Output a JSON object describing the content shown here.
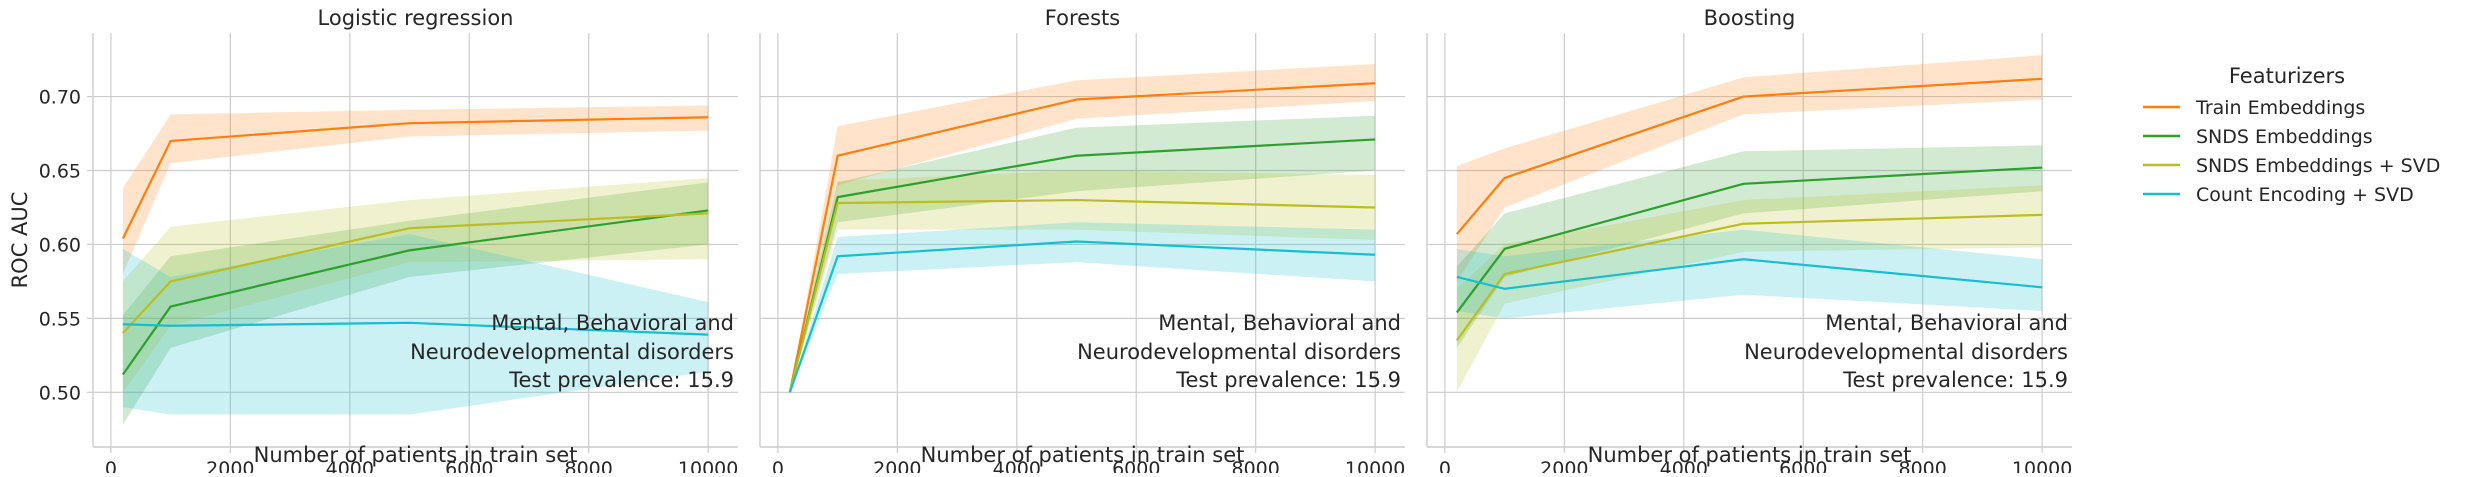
{
  "chart_data": {
    "type": "line",
    "ylabel": "ROC AUC",
    "xlabel": "Number of patients in train set",
    "xlim": [
      -300,
      10500
    ],
    "ylim": [
      0.463,
      0.743
    ],
    "x_ticks": [
      0,
      2000,
      4000,
      6000,
      8000,
      10000
    ],
    "x_tick_labels": [
      "0",
      "2000",
      "4000",
      "6000",
      "8000",
      "10000"
    ],
    "y_ticks": [
      0.5,
      0.55,
      0.6,
      0.65,
      0.7
    ],
    "y_tick_labels": [
      "0.50",
      "0.55",
      "0.60",
      "0.65",
      "0.70"
    ],
    "grid": true,
    "legend": {
      "title": "Featurizers",
      "placement": "right",
      "entries": [
        "Train Embeddings",
        "SNDS Embeddings",
        "SNDS Embeddings + SVD",
        "Count Encoding + SVD"
      ]
    },
    "colors": {
      "Train Embeddings": "#ff7f0e",
      "SNDS Embeddings": "#2ca02c",
      "SNDS Embeddings + SVD": "#bcbd22",
      "Count Encoding + SVD": "#17becf"
    },
    "panels": [
      {
        "title": "Logistic regression",
        "annotation": [
          "Mental, Behavioral and",
          "Neurodevelopmental disorders",
          "Test prevalence: 15.9"
        ],
        "series": [
          {
            "name": "Train Embeddings",
            "x": [
              200,
              1000,
              5000,
              10000
            ],
            "y": [
              0.604,
              0.67,
              0.682,
              0.686
            ],
            "lower": [
              0.58,
              0.655,
              0.673,
              0.677
            ],
            "upper": [
              0.638,
              0.688,
              0.691,
              0.694
            ]
          },
          {
            "name": "SNDS Embeddings",
            "x": [
              200,
              1000,
              5000,
              10000
            ],
            "y": [
              0.512,
              0.558,
              0.596,
              0.623
            ],
            "lower": [
              0.478,
              0.53,
              0.578,
              0.6
            ],
            "upper": [
              0.552,
              0.592,
              0.616,
              0.642
            ]
          },
          {
            "name": "SNDS Embeddings + SVD",
            "x": [
              200,
              1000,
              5000,
              10000
            ],
            "y": [
              0.54,
              0.575,
              0.611,
              0.621
            ],
            "lower": [
              0.5,
              0.545,
              0.588,
              0.59
            ],
            "upper": [
              0.575,
              0.612,
              0.63,
              0.645
            ]
          },
          {
            "name": "Count Encoding + SVD",
            "x": [
              200,
              1000,
              5000,
              10000
            ],
            "y": [
              0.546,
              0.545,
              0.547,
              0.539
            ],
            "lower": [
              0.49,
              0.485,
              0.485,
              0.514
            ],
            "upper": [
              0.597,
              0.578,
              0.607,
              0.561
            ]
          }
        ]
      },
      {
        "title": "Forests",
        "annotation": [
          "Mental, Behavioral and",
          "Neurodevelopmental disorders",
          "Test prevalence: 15.9"
        ],
        "series": [
          {
            "name": "Train Embeddings",
            "x": [
              200,
              1000,
              5000,
              10000
            ],
            "y": [
              0.5,
              0.66,
              0.698,
              0.709
            ],
            "lower": [
              0.5,
              0.64,
              0.685,
              0.697
            ],
            "upper": [
              0.5,
              0.68,
              0.711,
              0.722
            ]
          },
          {
            "name": "SNDS Embeddings",
            "x": [
              200,
              1000,
              5000,
              10000
            ],
            "y": [
              0.5,
              0.632,
              0.66,
              0.671
            ],
            "lower": [
              0.5,
              0.615,
              0.636,
              0.65
            ],
            "upper": [
              0.5,
              0.642,
              0.679,
              0.687
            ]
          },
          {
            "name": "SNDS Embeddings + SVD",
            "x": [
              200,
              1000,
              5000,
              10000
            ],
            "y": [
              0.5,
              0.628,
              0.63,
              0.625
            ],
            "lower": [
              0.5,
              0.61,
              0.61,
              0.603
            ],
            "upper": [
              0.5,
              0.643,
              0.65,
              0.647
            ]
          },
          {
            "name": "Count Encoding + SVD",
            "x": [
              200,
              1000,
              5000,
              10000
            ],
            "y": [
              0.5,
              0.592,
              0.602,
              0.593
            ],
            "lower": [
              0.5,
              0.58,
              0.588,
              0.575
            ],
            "upper": [
              0.5,
              0.605,
              0.615,
              0.61
            ]
          }
        ]
      },
      {
        "title": "Boosting",
        "annotation": [
          "Mental, Behavioral and",
          "Neurodevelopmental disorders",
          "Test prevalence: 15.9"
        ],
        "series": [
          {
            "name": "Train Embeddings",
            "x": [
              200,
              1000,
              5000,
              10000
            ],
            "y": [
              0.607,
              0.645,
              0.7,
              0.712
            ],
            "lower": [
              0.575,
              0.625,
              0.688,
              0.698
            ],
            "upper": [
              0.653,
              0.665,
              0.713,
              0.728
            ]
          },
          {
            "name": "SNDS Embeddings",
            "x": [
              200,
              1000,
              5000,
              10000
            ],
            "y": [
              0.554,
              0.597,
              0.641,
              0.652
            ],
            "lower": [
              0.53,
              0.578,
              0.621,
              0.636
            ],
            "upper": [
              0.585,
              0.621,
              0.663,
              0.667
            ]
          },
          {
            "name": "SNDS Embeddings + SVD",
            "x": [
              200,
              1000,
              5000,
              10000
            ],
            "y": [
              0.535,
              0.58,
              0.614,
              0.62
            ],
            "lower": [
              0.5,
              0.56,
              0.595,
              0.598
            ],
            "upper": [
              0.57,
              0.6,
              0.63,
              0.64
            ]
          },
          {
            "name": "Count Encoding + SVD",
            "x": [
              200,
              1000,
              5000,
              10000
            ],
            "y": [
              0.578,
              0.57,
              0.59,
              0.571
            ],
            "lower": [
              0.555,
              0.55,
              0.566,
              0.555
            ],
            "upper": [
              0.597,
              0.592,
              0.61,
              0.59
            ]
          }
        ]
      }
    ]
  }
}
